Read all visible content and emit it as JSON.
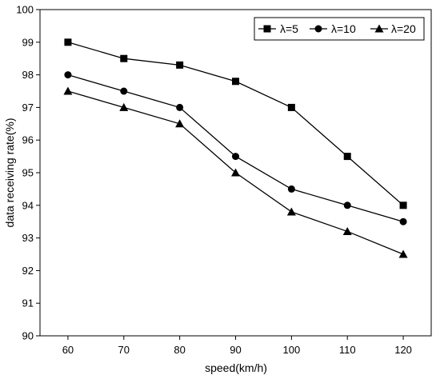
{
  "chart_data": {
    "type": "line",
    "xlabel": "speed(km/h)",
    "ylabel": "data receiving rate(%)",
    "x": [
      60,
      70,
      80,
      90,
      100,
      110,
      120
    ],
    "xlim": [
      55,
      125
    ],
    "ylim": [
      90,
      100
    ],
    "yticks": [
      90,
      91,
      92,
      93,
      94,
      95,
      96,
      97,
      98,
      99,
      100
    ],
    "xticks": [
      60,
      70,
      80,
      90,
      100,
      110,
      120
    ],
    "grid": false,
    "legend_position": "top-right",
    "series": [
      {
        "name": "λ=5",
        "marker": "square",
        "color": "#000000",
        "values": [
          99.0,
          98.5,
          98.3,
          97.8,
          97.0,
          95.5,
          94.0
        ]
      },
      {
        "name": "λ=10",
        "marker": "circle",
        "color": "#000000",
        "values": [
          98.0,
          97.5,
          97.0,
          95.5,
          94.5,
          94.0,
          93.5
        ]
      },
      {
        "name": "λ=20",
        "marker": "triangle",
        "color": "#000000",
        "values": [
          97.5,
          97.0,
          96.5,
          95.0,
          93.8,
          93.2,
          92.5
        ]
      }
    ]
  }
}
